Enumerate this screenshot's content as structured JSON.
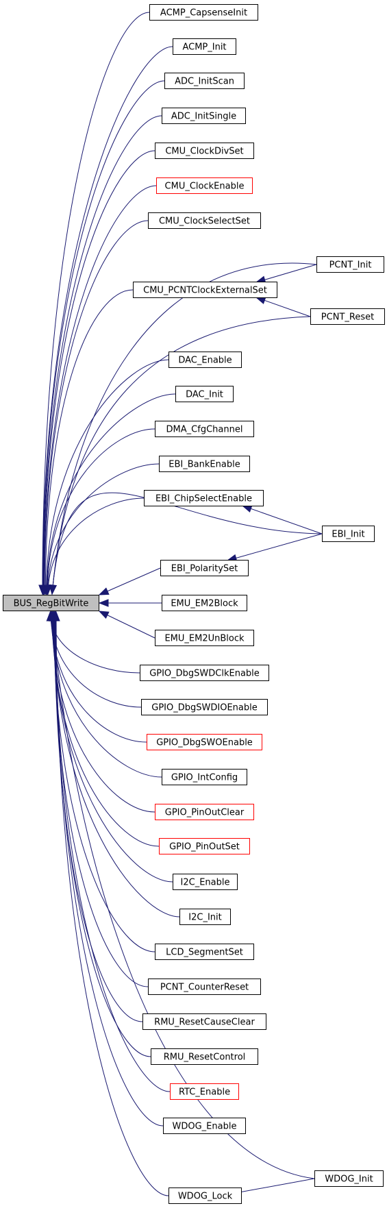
{
  "root": {
    "label": "BUS_RegBitWrite"
  },
  "callers": [
    {
      "label": "ACMP_CapsenseInit",
      "red": false
    },
    {
      "label": "ACMP_Init",
      "red": false
    },
    {
      "label": "ADC_InitScan",
      "red": false
    },
    {
      "label": "ADC_InitSingle",
      "red": false
    },
    {
      "label": "CMU_ClockDivSet",
      "red": false
    },
    {
      "label": "CMU_ClockEnable",
      "red": true
    },
    {
      "label": "CMU_ClockSelectSet",
      "red": false
    },
    {
      "label": "CMU_PCNTClockExternalSet",
      "red": false
    },
    {
      "label": "DAC_Enable",
      "red": false
    },
    {
      "label": "DAC_Init",
      "red": false
    },
    {
      "label": "DMA_CfgChannel",
      "red": false
    },
    {
      "label": "EBI_BankEnable",
      "red": false
    },
    {
      "label": "EBI_ChipSelectEnable",
      "red": false
    },
    {
      "label": "EBI_PolaritySet",
      "red": false
    },
    {
      "label": "EMU_EM2Block",
      "red": false
    },
    {
      "label": "EMU_EM2UnBlock",
      "red": false
    },
    {
      "label": "GPIO_DbgSWDClkEnable",
      "red": false
    },
    {
      "label": "GPIO_DbgSWDIOEnable",
      "red": false
    },
    {
      "label": "GPIO_DbgSWOEnable",
      "red": true
    },
    {
      "label": "GPIO_IntConfig",
      "red": false
    },
    {
      "label": "GPIO_PinOutClear",
      "red": true
    },
    {
      "label": "GPIO_PinOutSet",
      "red": true
    },
    {
      "label": "I2C_Enable",
      "red": false
    },
    {
      "label": "I2C_Init",
      "red": false
    },
    {
      "label": "LCD_SegmentSet",
      "red": false
    },
    {
      "label": "PCNT_CounterReset",
      "red": false
    },
    {
      "label": "RMU_ResetCauseClear",
      "red": false
    },
    {
      "label": "RMU_ResetControl",
      "red": false
    },
    {
      "label": "RTC_Enable",
      "red": true
    },
    {
      "label": "WDOG_Enable",
      "red": false
    },
    {
      "label": "WDOG_Lock",
      "red": false
    }
  ],
  "outer_callers": [
    {
      "label": "PCNT_Init",
      "red": false
    },
    {
      "label": "PCNT_Reset",
      "red": false
    },
    {
      "label": "EBI_Init",
      "red": false
    },
    {
      "label": "WDOG_Init",
      "red": false
    }
  ],
  "colors": {
    "edge": "#191970",
    "node_border": "#000000",
    "node_border_red": "#ff0000",
    "root_fill": "#bfbfbf",
    "node_fill": "#ffffff"
  }
}
